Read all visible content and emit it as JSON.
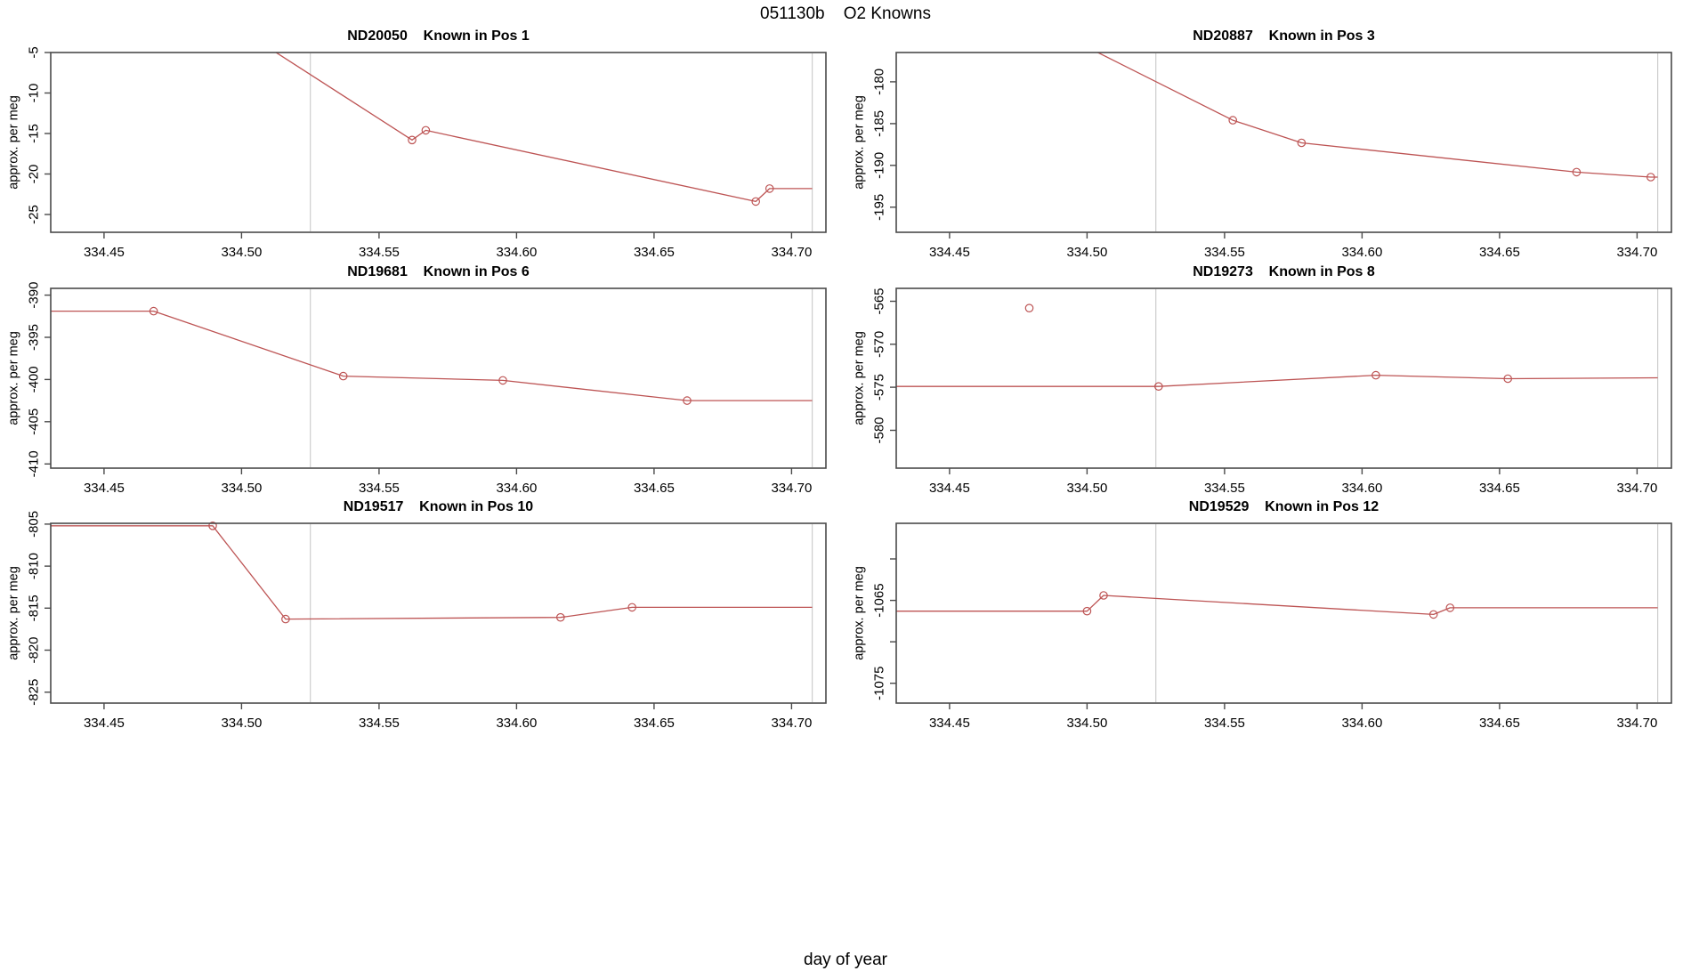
{
  "page": {
    "title": "051130b    O2 Knowns",
    "xlabel": "day of year"
  },
  "chart_data": {
    "type": "line",
    "title": "051130b    O2 Knowns",
    "xlabel": "day of year",
    "ylabel": "approx. per meg",
    "x_range": [
      334.4306,
      334.7125
    ],
    "x_tick_values": [
      334.45,
      334.5,
      334.55,
      334.6,
      334.65,
      334.7
    ],
    "x_tick_labels": [
      "334.45",
      "334.50",
      "334.55",
      "334.60",
      "334.65",
      "334.70"
    ],
    "reference_lines_x": [
      334.525,
      334.7075
    ],
    "line_color": "#bd5454",
    "reference_line_color": "#cdcdcd",
    "axis_color": "#4a4a4a",
    "legend": "none",
    "grid": "off",
    "panels": [
      {
        "title": "ND20050    Known in Pos 1",
        "y_range": [
          -27.2,
          -5.0
        ],
        "y_tick_values": [
          -25,
          -20,
          -15,
          -10,
          -5
        ],
        "y_tick_labels": [
          "-25",
          "-20",
          "-15",
          "-10",
          "-5"
        ],
        "line": [
          [
            334.47,
            4.3
          ],
          [
            334.562,
            -15.8
          ],
          [
            334.567,
            -14.6
          ],
          [
            334.687,
            -23.4
          ],
          [
            334.692,
            -21.8
          ],
          [
            334.7075,
            -21.8
          ]
        ],
        "markers": [
          [
            334.562,
            -15.8
          ],
          [
            334.567,
            -14.6
          ],
          [
            334.687,
            -23.4
          ],
          [
            334.692,
            -21.8
          ]
        ],
        "extra_points": []
      },
      {
        "title": "ND20887    Known in Pos 3",
        "y_range": [
          -198.0,
          -176.5
        ],
        "y_tick_values": [
          -195,
          -190,
          -185,
          -180
        ],
        "y_tick_labels": [
          "-195",
          "-190",
          "-185",
          "-180"
        ],
        "line": [
          [
            334.47,
            -170.9
          ],
          [
            334.553,
            -184.6
          ],
          [
            334.578,
            -187.3
          ],
          [
            334.678,
            -190.8
          ],
          [
            334.705,
            -191.4
          ],
          [
            334.7075,
            -191.4
          ]
        ],
        "markers": [
          [
            334.553,
            -184.6
          ],
          [
            334.578,
            -187.3
          ],
          [
            334.678,
            -190.8
          ],
          [
            334.705,
            -191.4
          ]
        ],
        "extra_points": []
      },
      {
        "title": "ND19681    Known in Pos 6",
        "y_range": [
          -410.5,
          -389.2
        ],
        "y_tick_values": [
          -410,
          -405,
          -400,
          -395,
          -390
        ],
        "y_tick_labels": [
          "-410",
          "-405",
          "-400",
          "-395",
          "-390"
        ],
        "line": [
          [
            334.42,
            -391.9
          ],
          [
            334.468,
            -391.9
          ],
          [
            334.537,
            -399.6
          ],
          [
            334.595,
            -400.1
          ],
          [
            334.662,
            -402.5
          ],
          [
            334.7075,
            -402.5
          ]
        ],
        "markers": [
          [
            334.468,
            -391.9
          ],
          [
            334.537,
            -399.6
          ],
          [
            334.595,
            -400.1
          ],
          [
            334.662,
            -402.5
          ]
        ],
        "extra_points": []
      },
      {
        "title": "ND19273    Known in Pos 8",
        "y_range": [
          -584.4,
          -563.5
        ],
        "y_tick_values": [
          -580,
          -575,
          -570,
          -565
        ],
        "y_tick_labels": [
          "-580",
          "-575",
          "-570",
          "-565"
        ],
        "line": [
          [
            334.42,
            -574.9
          ],
          [
            334.526,
            -574.9
          ],
          [
            334.605,
            -573.6
          ],
          [
            334.653,
            -574.0
          ],
          [
            334.7075,
            -573.9
          ]
        ],
        "markers": [
          [
            334.526,
            -574.9
          ],
          [
            334.605,
            -573.6
          ],
          [
            334.653,
            -574.0
          ]
        ],
        "extra_points": [
          [
            334.479,
            -565.8
          ]
        ]
      },
      {
        "title": "ND19517    Known in Pos 10",
        "y_range": [
          -826.3,
          -804.9
        ],
        "y_tick_values": [
          -825,
          -820,
          -815,
          -810,
          -805
        ],
        "y_tick_labels": [
          "-825",
          "-820",
          "-815",
          "-810",
          "-805"
        ],
        "line": [
          [
            334.42,
            -805.2
          ],
          [
            334.4895,
            -805.2
          ],
          [
            334.516,
            -816.3
          ],
          [
            334.616,
            -816.1
          ],
          [
            334.642,
            -814.9
          ],
          [
            334.7075,
            -814.9
          ]
        ],
        "markers": [
          [
            334.4895,
            -805.2
          ],
          [
            334.516,
            -816.3
          ],
          [
            334.616,
            -816.1
          ],
          [
            334.642,
            -814.9
          ]
        ],
        "extra_points": []
      },
      {
        "title": "ND19529    Known in Pos 12",
        "y_range": [
          -1077.4,
          -1055.7
        ],
        "y_tick_values": [
          -1075,
          -1070,
          -1065,
          -1060
        ],
        "y_tick_labels": [
          "-1075",
          "",
          "-1065",
          ""
        ],
        "line": [
          [
            334.42,
            -1066.3
          ],
          [
            334.5,
            -1066.3
          ],
          [
            334.506,
            -1064.4
          ],
          [
            334.626,
            -1066.7
          ],
          [
            334.632,
            -1065.9
          ],
          [
            334.7075,
            -1065.9
          ]
        ],
        "markers": [
          [
            334.5,
            -1066.3
          ],
          [
            334.506,
            -1064.4
          ],
          [
            334.626,
            -1066.7
          ],
          [
            334.632,
            -1065.9
          ]
        ],
        "extra_points": []
      }
    ]
  }
}
